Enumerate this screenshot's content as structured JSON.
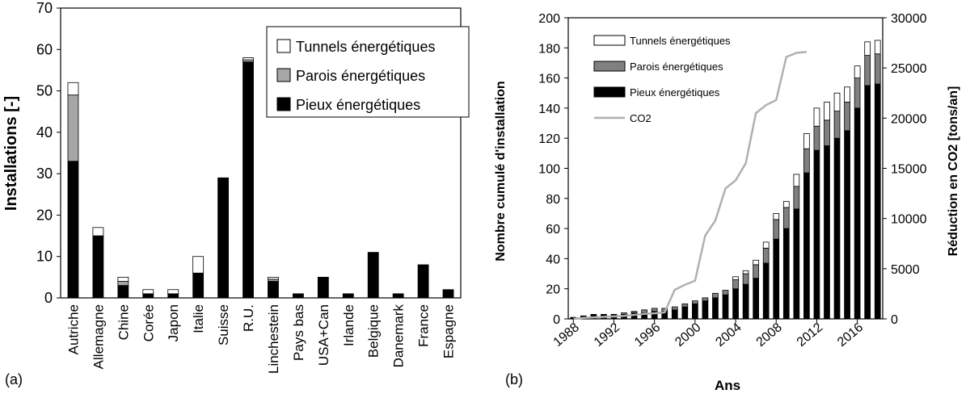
{
  "chart_data": [
    {
      "type": "bar",
      "stacked": true,
      "panel_label": "(a)",
      "categories": [
        "Autriche",
        "Allemagne",
        "Chine",
        "Corée",
        "Japon",
        "Italie",
        "Suisse",
        "R.U.",
        "Linchestein",
        "Pays bas",
        "USA+Can",
        "Irlande",
        "Belgique",
        "Danemark",
        "France",
        "Espagne"
      ],
      "series": [
        {
          "name": "Pieux énergétiques",
          "color": "#000000",
          "values": [
            33,
            15,
            3,
            1,
            1,
            6,
            29,
            57,
            4,
            1,
            5,
            1,
            11,
            1,
            8,
            2
          ]
        },
        {
          "name": "Parois énergétiques",
          "color": "#a6a6a6",
          "values": [
            16,
            0,
            1,
            0,
            0,
            0,
            0,
            0.5,
            0.5,
            0,
            0,
            0,
            0,
            0,
            0,
            0
          ]
        },
        {
          "name": "Tunnels énergétiques",
          "color": "#ffffff",
          "values": [
            3,
            2,
            1,
            1,
            1,
            4,
            0,
            0.5,
            0.5,
            0,
            0,
            0,
            0,
            0,
            0,
            0
          ]
        }
      ],
      "ylabel": "Installations [-]",
      "xlabel": "",
      "ylim": [
        0,
        70
      ],
      "yticks": [
        0,
        10,
        20,
        30,
        40,
        50,
        60,
        70
      ],
      "legend_order": [
        "Tunnels énergétiques",
        "Parois énergétiques",
        "Pieux énergétiques"
      ],
      "legend_position": "top-right",
      "grid": false
    },
    {
      "type": "bar",
      "stacked": true,
      "panel_label": "(b)",
      "x": [
        1988,
        1989,
        1990,
        1991,
        1992,
        1993,
        1994,
        1995,
        1996,
        1997,
        1998,
        1999,
        2000,
        2001,
        2002,
        2003,
        2004,
        2005,
        2006,
        2007,
        2008,
        2009,
        2010,
        2011,
        2012,
        2013,
        2014,
        2015,
        2016,
        2017,
        2018
      ],
      "xticks": [
        1988,
        1992,
        1996,
        2000,
        2004,
        2008,
        2012,
        2016
      ],
      "series": [
        {
          "name": "Pieux énergétiques",
          "color": "#000000",
          "values": [
            1,
            2,
            3,
            3,
            3,
            3,
            4,
            4,
            5,
            5,
            6,
            8,
            10,
            12,
            14,
            16,
            20,
            23,
            27,
            37,
            53,
            60,
            73,
            97,
            112,
            115,
            120,
            125,
            140,
            155,
            156
          ]
        },
        {
          "name": "Parois énergétiques",
          "color": "#808080",
          "values": [
            0,
            0,
            0,
            0,
            0,
            1,
            1,
            2,
            2,
            2,
            2,
            2,
            2,
            2,
            3,
            3,
            6,
            7,
            9,
            10,
            13,
            14,
            15,
            16,
            16,
            17,
            18,
            19,
            20,
            20,
            20
          ]
        },
        {
          "name": "Tunnels énergétiques",
          "color": "#ffffff",
          "values": [
            0,
            0,
            0,
            0,
            0,
            0,
            0,
            0,
            0,
            0,
            0,
            0,
            0,
            0,
            0,
            0,
            2,
            2,
            3,
            4,
            4,
            4,
            8,
            10,
            12,
            12,
            12,
            10,
            8,
            9,
            9
          ]
        },
        {
          "name": "CO2",
          "type": "line",
          "axis": "right",
          "color": "#b0b0b0",
          "x": [
            1988,
            1989,
            1990,
            1991,
            1992,
            1993,
            1994,
            1995,
            1996,
            1997,
            1998,
            1999,
            2000,
            2001,
            2002,
            2003,
            2004,
            2005,
            2006,
            2007,
            2008,
            2009,
            2010,
            2011
          ],
          "values": [
            0,
            100,
            150,
            200,
            250,
            300,
            400,
            500,
            550,
            650,
            2900,
            3400,
            3800,
            8300,
            9800,
            13000,
            13800,
            15500,
            20500,
            21300,
            21800,
            26100,
            26500,
            26600
          ]
        }
      ],
      "xlabel": "Ans",
      "ylabel": "Nombre cumulé d'installation",
      "ylabel_right": "Réduction en CO2 [tons/an]",
      "ylim": [
        0,
        200
      ],
      "yticks": [
        0,
        20,
        40,
        60,
        80,
        100,
        120,
        140,
        160,
        180,
        200
      ],
      "ylim_right": [
        0,
        30000
      ],
      "yticks_right": [
        0,
        5000,
        10000,
        15000,
        20000,
        25000,
        30000
      ],
      "legend_order": [
        "Tunnels énergétiques",
        "Parois énergétiques",
        "Pieux énergétiques",
        "CO2"
      ],
      "legend_position": "top-left",
      "grid": false
    }
  ]
}
